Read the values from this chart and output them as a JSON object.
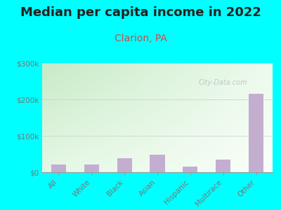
{
  "title": "Median per capita income in 2022",
  "subtitle": "Clarion, PA",
  "categories": [
    "All",
    "White",
    "Black",
    "Asian",
    "Hispanic",
    "Multirace",
    "Other"
  ],
  "values": [
    22000,
    21000,
    38000,
    48000,
    15000,
    35000,
    215000
  ],
  "bar_color": "#c4aed0",
  "title_fontsize": 13,
  "subtitle_fontsize": 10,
  "subtitle_color": "#c0504d",
  "title_color": "#222222",
  "background_outer": "#00ffff",
  "grad_top_left": "#c8e8c8",
  "grad_bottom_right": "#f8fff8",
  "ylim": [
    0,
    300000
  ],
  "yticks": [
    0,
    100000,
    200000,
    300000
  ],
  "ytick_labels": [
    "$0",
    "$100k",
    "$200k",
    "$300k"
  ],
  "watermark": "City-Data.com",
  "tick_color": "#777777"
}
